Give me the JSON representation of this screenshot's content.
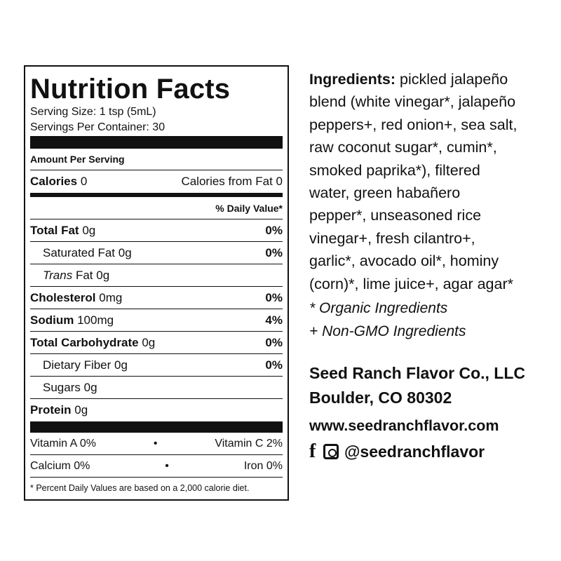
{
  "nutrition": {
    "title": "Nutrition Facts",
    "serving_size": "Serving Size: 1 tsp (5mL)",
    "servings_per_container": "Servings Per Container: 30",
    "amount_per_serving": "Amount Per Serving",
    "calories_label": "Calories",
    "calories_value": "0",
    "calories_from_fat": "Calories from Fat 0",
    "daily_value_header": "% Daily Value*",
    "rows": [
      {
        "label": "Total Fat",
        "amount": "0g",
        "dv": "0%"
      },
      {
        "label": "Saturated Fat",
        "amount": "0g",
        "dv": "0%"
      },
      {
        "label": "Trans",
        "label_suffix": "Fat",
        "amount": "0g",
        "dv": ""
      },
      {
        "label": "Cholesterol",
        "amount": "0mg",
        "dv": "0%"
      },
      {
        "label": "Sodium",
        "amount": "100mg",
        "dv": "4%"
      },
      {
        "label": "Total Carbohydrate",
        "amount": "0g",
        "dv": "0%"
      },
      {
        "label": "Dietary Fiber",
        "amount": "0g",
        "dv": "0%"
      },
      {
        "label": "Sugars",
        "amount": "0g",
        "dv": ""
      },
      {
        "label": "Protein",
        "amount": "0g",
        "dv": ""
      }
    ],
    "vitamins": [
      {
        "left": "Vitamin A 0%",
        "sep": "•",
        "right": "Vitamin C 2%"
      },
      {
        "left": "Calcium 0%",
        "sep": "•",
        "right": "Iron 0%"
      }
    ],
    "footnote": "* Percent Daily Values are based on a 2,000 calorie diet."
  },
  "ingredients": {
    "label": "Ingredients:",
    "lines": [
      "pickled jalapeño",
      "blend (white vinegar*, jalapeño",
      "peppers+, red onion+, sea salt,",
      "raw coconut sugar*, cumin*,",
      "smoked paprika*), filtered",
      "water, green habañero",
      "pepper*, unseasoned rice",
      "vinegar+, fresh cilantro+,",
      "garlic*, avocado oil*, hominy",
      "(corn)*, lime juice+, agar agar*"
    ],
    "organic_note": "* Organic Ingredients",
    "nongmo_note": "+ Non-GMO Ingredients"
  },
  "company": {
    "name": "Seed Ranch Flavor Co., LLC",
    "address": "Boulder, CO 80302",
    "website": "www.seedranchflavor.com",
    "handle": "@seedranchflavor",
    "icons": [
      "facebook-icon",
      "instagram-icon"
    ]
  }
}
